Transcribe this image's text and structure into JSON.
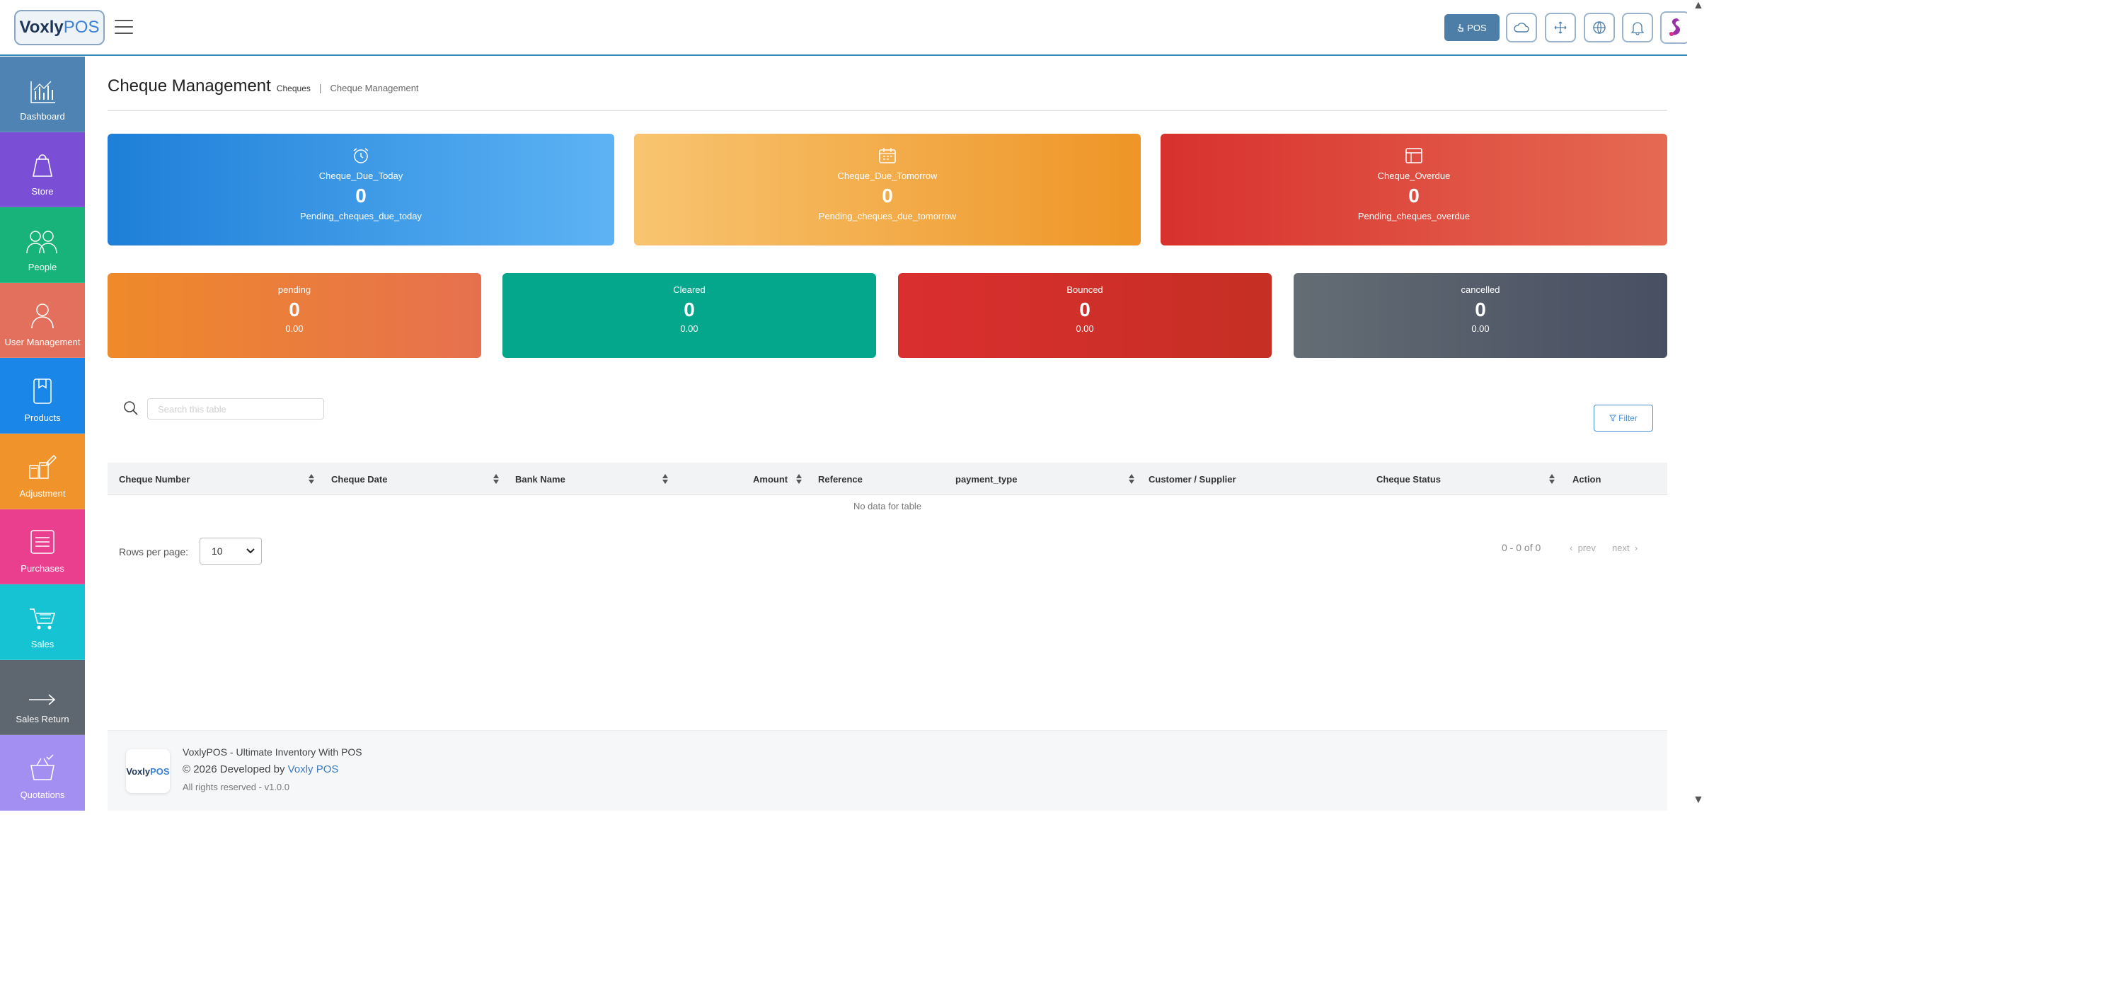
{
  "header": {
    "logo_part1": "Voxly",
    "logo_part2": "POS",
    "pos_button_label": "POS",
    "icons": [
      "cloud-icon",
      "fullscreen-icon",
      "globe-icon",
      "bell-icon"
    ]
  },
  "sidebar": {
    "items": [
      {
        "label": "Dashboard",
        "icon": "chart-icon",
        "color": "#4f83b3"
      },
      {
        "label": "Store",
        "icon": "bag-icon",
        "color": "#7a4fd6"
      },
      {
        "label": "People",
        "icon": "people-icon",
        "color": "#17b37b"
      },
      {
        "label": "User Management",
        "icon": "user-icon",
        "color": "#e2705c"
      },
      {
        "label": "Products",
        "icon": "box-icon",
        "color": "#1a86e8"
      },
      {
        "label": "Adjustment",
        "icon": "adjust-icon",
        "color": "#f0932a"
      },
      {
        "label": "Purchases",
        "icon": "receipt-icon",
        "color": "#ea3f8f"
      },
      {
        "label": "Sales",
        "icon": "cart-icon",
        "color": "#16c3d3"
      },
      {
        "label": "Sales Return",
        "icon": "arrow-right-icon",
        "color": "#5e6670"
      },
      {
        "label": "Quotations",
        "icon": "basket-icon",
        "color": "#a38ff2"
      }
    ]
  },
  "page": {
    "title": "Cheque Management",
    "breadcrumb_1": "Cheques",
    "breadcrumb_sep": "|",
    "breadcrumb_2": "Cheque Management"
  },
  "summary_cards": [
    {
      "label": "Cheque_Due_Today",
      "value": "0",
      "sub": "Pending_cheques_due_today",
      "icon": "alarm-clock-icon"
    },
    {
      "label": "Cheque_Due_Tomorrow",
      "value": "0",
      "sub": "Pending_cheques_due_tomorrow",
      "icon": "calendar-icon"
    },
    {
      "label": "Cheque_Overdue",
      "value": "0",
      "sub": "Pending_cheques_overdue",
      "icon": "overdue-calendar-icon"
    }
  ],
  "status_cards": [
    {
      "label": "pending",
      "value": "0",
      "amount": "0.00"
    },
    {
      "label": "Cleared",
      "value": "0",
      "amount": "0.00"
    },
    {
      "label": "Bounced",
      "value": "0",
      "amount": "0.00"
    },
    {
      "label": "cancelled",
      "value": "0",
      "amount": "0.00"
    }
  ],
  "table": {
    "search_placeholder": "Search this table",
    "filter_label": "Filter",
    "columns": [
      "Cheque Number",
      "Cheque Date",
      "Bank Name",
      "Amount",
      "Reference",
      "payment_type",
      "Customer / Supplier",
      "Cheque Status",
      "Action"
    ],
    "empty_text": "No data for table",
    "rows_per_page_label": "Rows per page:",
    "rows_per_page_value": "10",
    "pagination_info": "0 - 0 of 0",
    "prev_label": "prev",
    "next_label": "next"
  },
  "footer": {
    "logo_part1": "Voxly",
    "logo_part2": "POS",
    "line1": "VoxlyPOS - Ultimate Inventory With POS",
    "line2_prefix": "© 2026 Developed by",
    "line2_link": "Voxly POS",
    "line3": "All rights reserved - v1.0.0"
  }
}
